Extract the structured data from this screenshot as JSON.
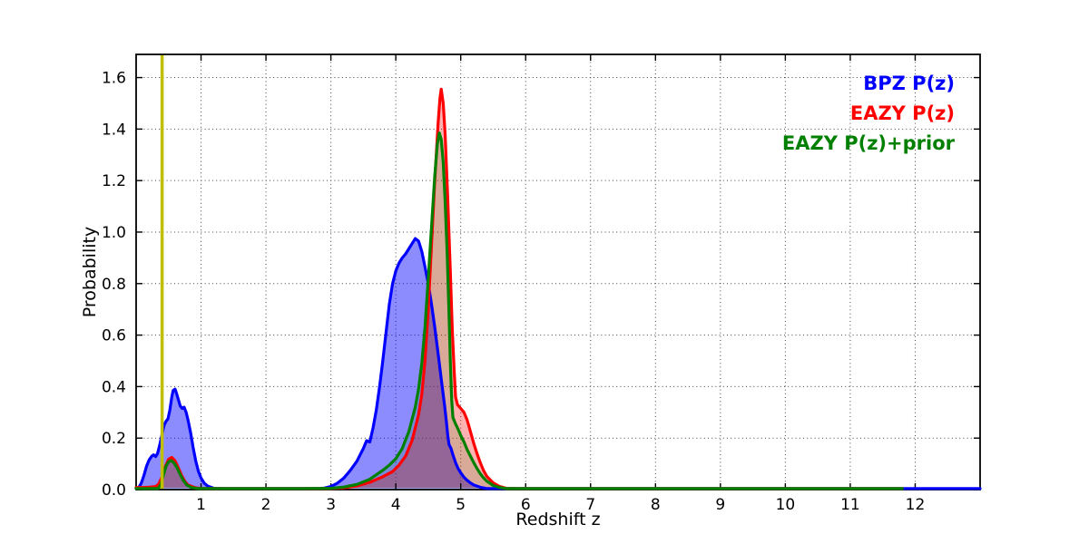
{
  "chart_data": {
    "type": "line",
    "title": "",
    "xlabel": "Redshift z",
    "ylabel": "Probability",
    "xlim": [
      0,
      13
    ],
    "ylim": [
      0,
      1.69
    ],
    "xticks": {
      "values": [
        1,
        2,
        3,
        4,
        5,
        6,
        7,
        8,
        9,
        10,
        11,
        12
      ],
      "labels": [
        "1",
        "2",
        "3",
        "4",
        "5",
        "6",
        "7",
        "8",
        "9",
        "10",
        "11",
        "12"
      ]
    },
    "yticks": {
      "values": [
        0.0,
        0.2,
        0.4,
        0.6,
        0.8,
        1.0,
        1.2,
        1.4,
        1.6
      ],
      "labels": [
        "0.0",
        "0.2",
        "0.4",
        "0.6",
        "0.8",
        "1.0",
        "1.2",
        "1.4",
        "1.6"
      ]
    },
    "grid": {
      "on": true,
      "style": "dotted",
      "color": "#444444"
    },
    "axis_color": "#000000",
    "background": "#ffffff",
    "legend": {
      "position": "upper right",
      "frame": false,
      "entries": [
        {
          "label": "BPZ P(z)",
          "color": "#0000ff"
        },
        {
          "label": "EAZY P(z)",
          "color": "#ff0000"
        },
        {
          "label": "EAZY P(z)+prior",
          "color": "#008000"
        }
      ]
    },
    "vline": {
      "x": 0.4,
      "color": "#bfbf00",
      "width": 3.5
    },
    "series": [
      {
        "name": "BPZ P(z)",
        "color": "#0000ff",
        "fill_opacity": 0.45,
        "line_width": 3.2,
        "points": [
          [
            0.0,
            0.0
          ],
          [
            0.04,
            0.008
          ],
          [
            0.08,
            0.025
          ],
          [
            0.12,
            0.055
          ],
          [
            0.16,
            0.09
          ],
          [
            0.2,
            0.115
          ],
          [
            0.24,
            0.13
          ],
          [
            0.27,
            0.135
          ],
          [
            0.3,
            0.128
          ],
          [
            0.33,
            0.14
          ],
          [
            0.36,
            0.17
          ],
          [
            0.4,
            0.215
          ],
          [
            0.43,
            0.25
          ],
          [
            0.46,
            0.265
          ],
          [
            0.49,
            0.275
          ],
          [
            0.52,
            0.31
          ],
          [
            0.55,
            0.36
          ],
          [
            0.57,
            0.385
          ],
          [
            0.6,
            0.39
          ],
          [
            0.62,
            0.375
          ],
          [
            0.65,
            0.35
          ],
          [
            0.68,
            0.325
          ],
          [
            0.71,
            0.315
          ],
          [
            0.74,
            0.32
          ],
          [
            0.77,
            0.3
          ],
          [
            0.8,
            0.27
          ],
          [
            0.84,
            0.22
          ],
          [
            0.88,
            0.16
          ],
          [
            0.92,
            0.11
          ],
          [
            0.96,
            0.07
          ],
          [
            1.0,
            0.045
          ],
          [
            1.05,
            0.025
          ],
          [
            1.1,
            0.014
          ],
          [
            1.2,
            0.005
          ],
          [
            1.35,
            0.002
          ],
          [
            1.6,
            0.001
          ],
          [
            2.6,
            0.001
          ],
          [
            2.8,
            0.003
          ],
          [
            2.9,
            0.006
          ],
          [
            3.0,
            0.012
          ],
          [
            3.1,
            0.025
          ],
          [
            3.2,
            0.045
          ],
          [
            3.3,
            0.075
          ],
          [
            3.4,
            0.11
          ],
          [
            3.5,
            0.16
          ],
          [
            3.55,
            0.19
          ],
          [
            3.6,
            0.185
          ],
          [
            3.65,
            0.24
          ],
          [
            3.7,
            0.31
          ],
          [
            3.75,
            0.4
          ],
          [
            3.8,
            0.5
          ],
          [
            3.85,
            0.61
          ],
          [
            3.9,
            0.72
          ],
          [
            3.95,
            0.8
          ],
          [
            4.0,
            0.85
          ],
          [
            4.05,
            0.88
          ],
          [
            4.1,
            0.9
          ],
          [
            4.15,
            0.915
          ],
          [
            4.2,
            0.935
          ],
          [
            4.25,
            0.955
          ],
          [
            4.3,
            0.975
          ],
          [
            4.35,
            0.965
          ],
          [
            4.4,
            0.925
          ],
          [
            4.45,
            0.865
          ],
          [
            4.5,
            0.8
          ],
          [
            4.55,
            0.72
          ],
          [
            4.6,
            0.63
          ],
          [
            4.65,
            0.53
          ],
          [
            4.7,
            0.43
          ],
          [
            4.75,
            0.33
          ],
          [
            4.78,
            0.26
          ],
          [
            4.8,
            0.21
          ],
          [
            4.82,
            0.175
          ],
          [
            4.85,
            0.16
          ],
          [
            4.88,
            0.135
          ],
          [
            4.92,
            0.105
          ],
          [
            4.96,
            0.082
          ],
          [
            5.0,
            0.065
          ],
          [
            5.05,
            0.048
          ],
          [
            5.1,
            0.036
          ],
          [
            5.15,
            0.026
          ],
          [
            5.2,
            0.018
          ],
          [
            5.3,
            0.009
          ],
          [
            5.4,
            0.004
          ],
          [
            5.55,
            0.002
          ],
          [
            5.8,
            0.001
          ],
          [
            6.5,
            0.0
          ],
          [
            13.0,
            0.0
          ]
        ]
      },
      {
        "name": "EAZY P(z)",
        "color": "#ff0000",
        "fill_opacity": 0.3,
        "line_width": 3.2,
        "points": [
          [
            0.0,
            0.008
          ],
          [
            0.1,
            0.008
          ],
          [
            0.2,
            0.009
          ],
          [
            0.3,
            0.012
          ],
          [
            0.35,
            0.022
          ],
          [
            0.4,
            0.05
          ],
          [
            0.45,
            0.09
          ],
          [
            0.5,
            0.118
          ],
          [
            0.55,
            0.125
          ],
          [
            0.6,
            0.112
          ],
          [
            0.65,
            0.085
          ],
          [
            0.7,
            0.055
          ],
          [
            0.75,
            0.032
          ],
          [
            0.8,
            0.018
          ],
          [
            0.9,
            0.008
          ],
          [
            1.0,
            0.004
          ],
          [
            1.2,
            0.002
          ],
          [
            1.6,
            0.001
          ],
          [
            2.6,
            0.001
          ],
          [
            3.0,
            0.003
          ],
          [
            3.2,
            0.007
          ],
          [
            3.4,
            0.014
          ],
          [
            3.6,
            0.028
          ],
          [
            3.8,
            0.05
          ],
          [
            3.95,
            0.07
          ],
          [
            4.05,
            0.095
          ],
          [
            4.15,
            0.13
          ],
          [
            4.25,
            0.19
          ],
          [
            4.35,
            0.29
          ],
          [
            4.4,
            0.37
          ],
          [
            4.45,
            0.5
          ],
          [
            4.5,
            0.7
          ],
          [
            4.55,
            0.95
          ],
          [
            4.6,
            1.2
          ],
          [
            4.65,
            1.42
          ],
          [
            4.68,
            1.52
          ],
          [
            4.7,
            1.555
          ],
          [
            4.73,
            1.5
          ],
          [
            4.76,
            1.38
          ],
          [
            4.8,
            1.13
          ],
          [
            4.84,
            0.85
          ],
          [
            4.87,
            0.62
          ],
          [
            4.9,
            0.46
          ],
          [
            4.92,
            0.36
          ],
          [
            4.95,
            0.33
          ],
          [
            5.0,
            0.315
          ],
          [
            5.05,
            0.3
          ],
          [
            5.1,
            0.27
          ],
          [
            5.15,
            0.225
          ],
          [
            5.2,
            0.18
          ],
          [
            5.25,
            0.14
          ],
          [
            5.3,
            0.105
          ],
          [
            5.35,
            0.075
          ],
          [
            5.4,
            0.052
          ],
          [
            5.5,
            0.026
          ],
          [
            5.6,
            0.012
          ],
          [
            5.7,
            0.005
          ],
          [
            5.85,
            0.002
          ],
          [
            6.1,
            0.0
          ],
          [
            11.8,
            0.0
          ]
        ]
      },
      {
        "name": "EAZY P(z)+prior",
        "color": "#008000",
        "fill_opacity": 0.15,
        "line_width": 3.2,
        "points": [
          [
            0.0,
            0.0
          ],
          [
            0.3,
            0.0
          ],
          [
            0.34,
            0.004
          ],
          [
            0.38,
            0.02
          ],
          [
            0.42,
            0.055
          ],
          [
            0.46,
            0.09
          ],
          [
            0.5,
            0.108
          ],
          [
            0.54,
            0.113
          ],
          [
            0.58,
            0.105
          ],
          [
            0.63,
            0.085
          ],
          [
            0.68,
            0.058
          ],
          [
            0.73,
            0.035
          ],
          [
            0.78,
            0.018
          ],
          [
            0.85,
            0.008
          ],
          [
            0.95,
            0.003
          ],
          [
            1.1,
            0.001
          ],
          [
            1.6,
            0.001
          ],
          [
            2.6,
            0.002
          ],
          [
            3.0,
            0.005
          ],
          [
            3.2,
            0.01
          ],
          [
            3.4,
            0.02
          ],
          [
            3.6,
            0.04
          ],
          [
            3.8,
            0.075
          ],
          [
            3.9,
            0.095
          ],
          [
            4.0,
            0.12
          ],
          [
            4.1,
            0.16
          ],
          [
            4.2,
            0.225
          ],
          [
            4.3,
            0.32
          ],
          [
            4.35,
            0.39
          ],
          [
            4.4,
            0.49
          ],
          [
            4.45,
            0.63
          ],
          [
            4.5,
            0.82
          ],
          [
            4.55,
            1.02
          ],
          [
            4.6,
            1.22
          ],
          [
            4.64,
            1.34
          ],
          [
            4.67,
            1.385
          ],
          [
            4.7,
            1.36
          ],
          [
            4.73,
            1.27
          ],
          [
            4.76,
            1.12
          ],
          [
            4.79,
            0.92
          ],
          [
            4.82,
            0.68
          ],
          [
            4.84,
            0.5
          ],
          [
            4.86,
            0.35
          ],
          [
            4.88,
            0.28
          ],
          [
            4.92,
            0.255
          ],
          [
            4.96,
            0.235
          ],
          [
            5.0,
            0.21
          ],
          [
            5.05,
            0.185
          ],
          [
            5.1,
            0.155
          ],
          [
            5.15,
            0.13
          ],
          [
            5.2,
            0.105
          ],
          [
            5.25,
            0.082
          ],
          [
            5.3,
            0.062
          ],
          [
            5.35,
            0.046
          ],
          [
            5.4,
            0.033
          ],
          [
            5.5,
            0.016
          ],
          [
            5.6,
            0.008
          ],
          [
            5.7,
            0.003
          ],
          [
            5.85,
            0.001
          ],
          [
            6.1,
            0.0
          ],
          [
            11.8,
            0.0
          ]
        ]
      }
    ]
  }
}
